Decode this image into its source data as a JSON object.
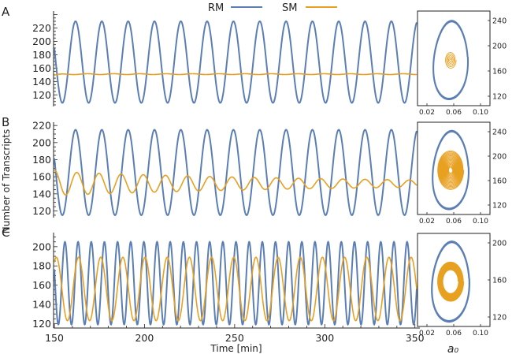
{
  "legend": {
    "entries": [
      {
        "label": "RM",
        "color": "#5b7fb5"
      },
      {
        "label": "SM",
        "color": "#f0a020"
      }
    ]
  },
  "ylabel": "Number of Transcripts",
  "xlabel": "Time [min]",
  "phase_xlabel": "a₀",
  "colors": {
    "rm": "#5b7fb5",
    "sm": "#e8a020"
  },
  "chart_data": [
    {
      "id": "A",
      "letter": "A",
      "type": "line",
      "xlim": [
        150,
        351
      ],
      "ylim": [
        105,
        243
      ],
      "yticks": [
        120,
        140,
        160,
        180,
        200,
        220
      ],
      "xticks": [],
      "series": [
        {
          "name": "RM",
          "kind": "sine",
          "mean": 169,
          "amp": 61,
          "period": 14.6,
          "phase": 2.8,
          "decay": 0,
          "trans": 0
        },
        {
          "name": "SM",
          "kind": "sine",
          "mean": 151,
          "amp": 0.6,
          "period": 14.6,
          "phase": 0,
          "decay": 0,
          "trans": -1.5
        }
      ],
      "phase_plot": {
        "xticks": [
          "0.02",
          "0.06",
          "0.10"
        ],
        "yticks": [
          "120",
          "160",
          "200",
          "240"
        ],
        "rm": {
          "rx": 0.36,
          "ry": 0.4,
          "turns": 4
        },
        "sm": {
          "r0": 0.14,
          "r1": 0.01,
          "turns": 5
        }
      }
    },
    {
      "id": "B",
      "letter": "B",
      "type": "line",
      "xlim": [
        150,
        351
      ],
      "ylim": [
        114,
        222
      ],
      "yticks": [
        120,
        140,
        160,
        180,
        200,
        220
      ],
      "xticks": [],
      "series": [
        {
          "name": "RM",
          "kind": "sine",
          "mean": 165,
          "amp": 50,
          "period": 14.6,
          "phase": 2.8,
          "decay": 0,
          "trans": 0
        },
        {
          "name": "SM",
          "kind": "sine",
          "mean": 152,
          "amp": 14,
          "period": 12.3,
          "phase": 1.5,
          "decay": 0.006,
          "trans": 2
        }
      ],
      "phase_plot": {
        "xticks": [
          "0.02",
          "0.06",
          "0.10"
        ],
        "yticks": [
          "120",
          "160",
          "200",
          "240"
        ],
        "rm": {
          "rx": 0.38,
          "ry": 0.42,
          "turns": 4
        },
        "sm": {
          "r0": 0.33,
          "r1": 0.04,
          "turns": 18
        }
      }
    },
    {
      "id": "C",
      "letter": "C",
      "type": "line",
      "xlim": [
        150,
        351
      ],
      "ylim": [
        117,
        213
      ],
      "yticks": [
        120,
        140,
        160,
        180,
        200
      ],
      "xticks": [
        150,
        200,
        250,
        300,
        350
      ],
      "series": [
        {
          "name": "RM",
          "kind": "sine",
          "mean": 162,
          "amp": 43,
          "period": 7.3,
          "phase": 2.8,
          "decay": 0,
          "trans": 0
        },
        {
          "name": "SM",
          "kind": "sine",
          "mean": 156,
          "amp": 33,
          "period": 12.3,
          "phase": 1.0,
          "decay": 0,
          "trans": 0
        }
      ],
      "phase_plot": {
        "xticks": [
          "0.02",
          "0.06",
          "0.10"
        ],
        "yticks": [
          "120",
          "160",
          "200"
        ],
        "rm": {
          "rx": 0.4,
          "ry": 0.43,
          "turns": 5
        },
        "sm": {
          "r0": 0.33,
          "r1": 0.19,
          "turns": 14
        }
      }
    }
  ]
}
